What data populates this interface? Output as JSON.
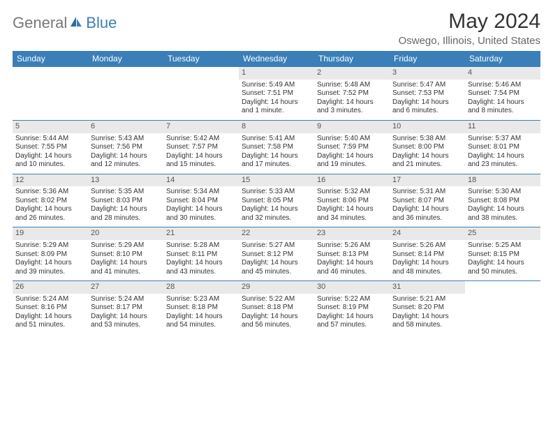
{
  "brand": {
    "part1": "General",
    "part2": "Blue"
  },
  "title": "May 2024",
  "location": "Oswego, Illinois, United States",
  "colors": {
    "header_bg": "#3a7fb8",
    "header_text": "#ffffff",
    "daynum_bg": "#e9e9e9",
    "text": "#333333",
    "brand_gray": "#777777",
    "brand_blue": "#3a7fb8"
  },
  "weekdays": [
    "Sunday",
    "Monday",
    "Tuesday",
    "Wednesday",
    "Thursday",
    "Friday",
    "Saturday"
  ],
  "weeks": [
    [
      {
        "n": "",
        "sr": "",
        "ss": "",
        "dl": ""
      },
      {
        "n": "",
        "sr": "",
        "ss": "",
        "dl": ""
      },
      {
        "n": "",
        "sr": "",
        "ss": "",
        "dl": ""
      },
      {
        "n": "1",
        "sr": "Sunrise: 5:49 AM",
        "ss": "Sunset: 7:51 PM",
        "dl": "Daylight: 14 hours and 1 minute."
      },
      {
        "n": "2",
        "sr": "Sunrise: 5:48 AM",
        "ss": "Sunset: 7:52 PM",
        "dl": "Daylight: 14 hours and 3 minutes."
      },
      {
        "n": "3",
        "sr": "Sunrise: 5:47 AM",
        "ss": "Sunset: 7:53 PM",
        "dl": "Daylight: 14 hours and 6 minutes."
      },
      {
        "n": "4",
        "sr": "Sunrise: 5:46 AM",
        "ss": "Sunset: 7:54 PM",
        "dl": "Daylight: 14 hours and 8 minutes."
      }
    ],
    [
      {
        "n": "5",
        "sr": "Sunrise: 5:44 AM",
        "ss": "Sunset: 7:55 PM",
        "dl": "Daylight: 14 hours and 10 minutes."
      },
      {
        "n": "6",
        "sr": "Sunrise: 5:43 AM",
        "ss": "Sunset: 7:56 PM",
        "dl": "Daylight: 14 hours and 12 minutes."
      },
      {
        "n": "7",
        "sr": "Sunrise: 5:42 AM",
        "ss": "Sunset: 7:57 PM",
        "dl": "Daylight: 14 hours and 15 minutes."
      },
      {
        "n": "8",
        "sr": "Sunrise: 5:41 AM",
        "ss": "Sunset: 7:58 PM",
        "dl": "Daylight: 14 hours and 17 minutes."
      },
      {
        "n": "9",
        "sr": "Sunrise: 5:40 AM",
        "ss": "Sunset: 7:59 PM",
        "dl": "Daylight: 14 hours and 19 minutes."
      },
      {
        "n": "10",
        "sr": "Sunrise: 5:38 AM",
        "ss": "Sunset: 8:00 PM",
        "dl": "Daylight: 14 hours and 21 minutes."
      },
      {
        "n": "11",
        "sr": "Sunrise: 5:37 AM",
        "ss": "Sunset: 8:01 PM",
        "dl": "Daylight: 14 hours and 23 minutes."
      }
    ],
    [
      {
        "n": "12",
        "sr": "Sunrise: 5:36 AM",
        "ss": "Sunset: 8:02 PM",
        "dl": "Daylight: 14 hours and 26 minutes."
      },
      {
        "n": "13",
        "sr": "Sunrise: 5:35 AM",
        "ss": "Sunset: 8:03 PM",
        "dl": "Daylight: 14 hours and 28 minutes."
      },
      {
        "n": "14",
        "sr": "Sunrise: 5:34 AM",
        "ss": "Sunset: 8:04 PM",
        "dl": "Daylight: 14 hours and 30 minutes."
      },
      {
        "n": "15",
        "sr": "Sunrise: 5:33 AM",
        "ss": "Sunset: 8:05 PM",
        "dl": "Daylight: 14 hours and 32 minutes."
      },
      {
        "n": "16",
        "sr": "Sunrise: 5:32 AM",
        "ss": "Sunset: 8:06 PM",
        "dl": "Daylight: 14 hours and 34 minutes."
      },
      {
        "n": "17",
        "sr": "Sunrise: 5:31 AM",
        "ss": "Sunset: 8:07 PM",
        "dl": "Daylight: 14 hours and 36 minutes."
      },
      {
        "n": "18",
        "sr": "Sunrise: 5:30 AM",
        "ss": "Sunset: 8:08 PM",
        "dl": "Daylight: 14 hours and 38 minutes."
      }
    ],
    [
      {
        "n": "19",
        "sr": "Sunrise: 5:29 AM",
        "ss": "Sunset: 8:09 PM",
        "dl": "Daylight: 14 hours and 39 minutes."
      },
      {
        "n": "20",
        "sr": "Sunrise: 5:29 AM",
        "ss": "Sunset: 8:10 PM",
        "dl": "Daylight: 14 hours and 41 minutes."
      },
      {
        "n": "21",
        "sr": "Sunrise: 5:28 AM",
        "ss": "Sunset: 8:11 PM",
        "dl": "Daylight: 14 hours and 43 minutes."
      },
      {
        "n": "22",
        "sr": "Sunrise: 5:27 AM",
        "ss": "Sunset: 8:12 PM",
        "dl": "Daylight: 14 hours and 45 minutes."
      },
      {
        "n": "23",
        "sr": "Sunrise: 5:26 AM",
        "ss": "Sunset: 8:13 PM",
        "dl": "Daylight: 14 hours and 46 minutes."
      },
      {
        "n": "24",
        "sr": "Sunrise: 5:26 AM",
        "ss": "Sunset: 8:14 PM",
        "dl": "Daylight: 14 hours and 48 minutes."
      },
      {
        "n": "25",
        "sr": "Sunrise: 5:25 AM",
        "ss": "Sunset: 8:15 PM",
        "dl": "Daylight: 14 hours and 50 minutes."
      }
    ],
    [
      {
        "n": "26",
        "sr": "Sunrise: 5:24 AM",
        "ss": "Sunset: 8:16 PM",
        "dl": "Daylight: 14 hours and 51 minutes."
      },
      {
        "n": "27",
        "sr": "Sunrise: 5:24 AM",
        "ss": "Sunset: 8:17 PM",
        "dl": "Daylight: 14 hours and 53 minutes."
      },
      {
        "n": "28",
        "sr": "Sunrise: 5:23 AM",
        "ss": "Sunset: 8:18 PM",
        "dl": "Daylight: 14 hours and 54 minutes."
      },
      {
        "n": "29",
        "sr": "Sunrise: 5:22 AM",
        "ss": "Sunset: 8:18 PM",
        "dl": "Daylight: 14 hours and 56 minutes."
      },
      {
        "n": "30",
        "sr": "Sunrise: 5:22 AM",
        "ss": "Sunset: 8:19 PM",
        "dl": "Daylight: 14 hours and 57 minutes."
      },
      {
        "n": "31",
        "sr": "Sunrise: 5:21 AM",
        "ss": "Sunset: 8:20 PM",
        "dl": "Daylight: 14 hours and 58 minutes."
      },
      {
        "n": "",
        "sr": "",
        "ss": "",
        "dl": ""
      }
    ]
  ]
}
